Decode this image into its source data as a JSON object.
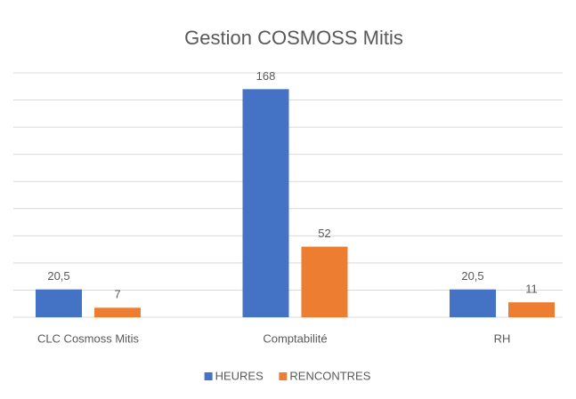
{
  "chart_data": {
    "type": "bar",
    "title": "Gestion COSMOSS Mitis",
    "categories": [
      "CLC Cosmoss Mitis",
      "Comptabilité",
      "RH"
    ],
    "series": [
      {
        "name": "HEURES",
        "color": "#4472c4",
        "values": [
          20.5,
          168,
          20.5
        ],
        "value_labels": [
          "20,5",
          "168",
          "20,5"
        ]
      },
      {
        "name": "RENCONTRES",
        "color": "#ed7d31",
        "values": [
          7,
          52,
          11
        ],
        "value_labels": [
          "7",
          "52",
          "11"
        ]
      }
    ],
    "ylim": [
      0,
      180
    ],
    "yticks": [
      0,
      20,
      40,
      60,
      80,
      100,
      120,
      140,
      160,
      180
    ],
    "grid": true,
    "legend": "bottom"
  }
}
